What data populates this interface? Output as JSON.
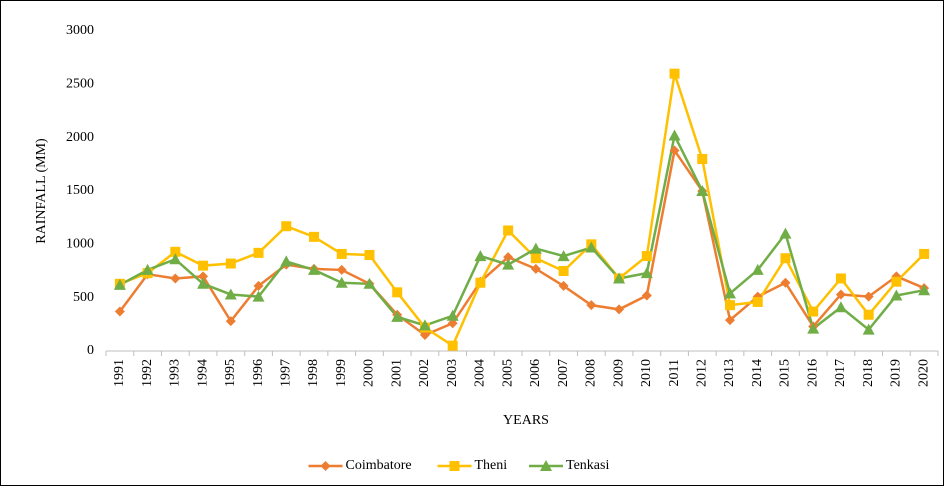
{
  "chart_data": {
    "type": "line",
    "x_label": "YEARS",
    "y_label": "RAINFALL (MM)",
    "categories": [
      "1991",
      "1992",
      "1993",
      "1994",
      "1995",
      "1996",
      "1997",
      "1998",
      "1999",
      "2000",
      "2001",
      "2002",
      "2003",
      "2004",
      "2005",
      "2006",
      "2007",
      "2008",
      "2009",
      "2010",
      "2011",
      "2012",
      "2013",
      "2014",
      "2015",
      "2016",
      "2017",
      "2018",
      "2019",
      "2020"
    ],
    "series": [
      {
        "name": "Coimbatore",
        "color": "#ED7D31",
        "marker": "diamond",
        "values": [
          370,
          720,
          680,
          700,
          280,
          610,
          810,
          770,
          760,
          630,
          340,
          150,
          260,
          650,
          880,
          770,
          610,
          430,
          390,
          520,
          1880,
          1500,
          290,
          510,
          640,
          230,
          530,
          510,
          700,
          590
        ]
      },
      {
        "name": "Theni",
        "color": "#FFC000",
        "marker": "square",
        "values": [
          630,
          730,
          930,
          800,
          820,
          920,
          1170,
          1070,
          910,
          900,
          550,
          220,
          50,
          640,
          1130,
          870,
          750,
          1000,
          680,
          890,
          2600,
          1800,
          430,
          460,
          870,
          370,
          680,
          340,
          650,
          910
        ]
      },
      {
        "name": "Tenkasi",
        "color": "#70AD47",
        "marker": "triangle",
        "values": [
          620,
          760,
          860,
          630,
          530,
          510,
          840,
          760,
          640,
          630,
          320,
          240,
          330,
          890,
          810,
          960,
          890,
          970,
          680,
          730,
          2020,
          1500,
          540,
          760,
          1100,
          210,
          410,
          200,
          520,
          570
        ]
      }
    ],
    "ylim": [
      0,
      3000
    ],
    "yticks": [
      0,
      500,
      1000,
      1500,
      2000,
      2500,
      3000
    ],
    "grid": false,
    "legend": "bottom"
  }
}
